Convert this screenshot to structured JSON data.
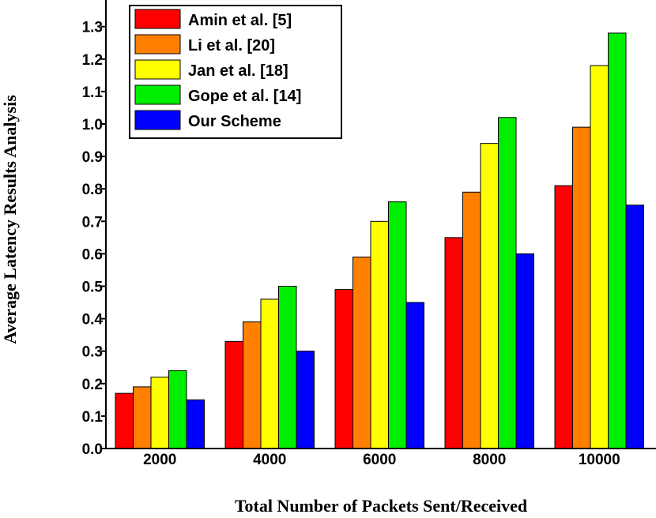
{
  "chart_data": {
    "type": "bar",
    "title": "",
    "xlabel": "Total Number of Packets Sent/Received",
    "ylabel": "Average Latency Results Analysis",
    "categories": [
      "2000",
      "4000",
      "6000",
      "8000",
      "10000"
    ],
    "ylim": [
      0,
      1.35
    ],
    "yticks": [
      "0.0",
      "0.1",
      "0.2",
      "0.3",
      "0.4",
      "0.5",
      "0.6",
      "0.7",
      "0.8",
      "0.9",
      "1.0",
      "1.1",
      "1.2",
      "1.3"
    ],
    "legend_position": "top-left",
    "grid": false,
    "series": [
      {
        "name": "Amin et al. [5]",
        "color": "#ff0000",
        "values": [
          0.17,
          0.33,
          0.49,
          0.65,
          0.81
        ]
      },
      {
        "name": "Li et al. [20]",
        "color": "#ff8000",
        "values": [
          0.19,
          0.39,
          0.59,
          0.79,
          0.99
        ]
      },
      {
        "name": "Jan et al. [18]",
        "color": "#ffff00",
        "values": [
          0.22,
          0.46,
          0.7,
          0.94,
          1.18
        ]
      },
      {
        "name": "Gope et al. [14]",
        "color": "#00ee00",
        "values": [
          0.24,
          0.5,
          0.76,
          1.02,
          1.28
        ]
      },
      {
        "name": "Our Scheme",
        "color": "#0000ff",
        "values": [
          0.15,
          0.3,
          0.45,
          0.6,
          0.75
        ]
      }
    ]
  }
}
